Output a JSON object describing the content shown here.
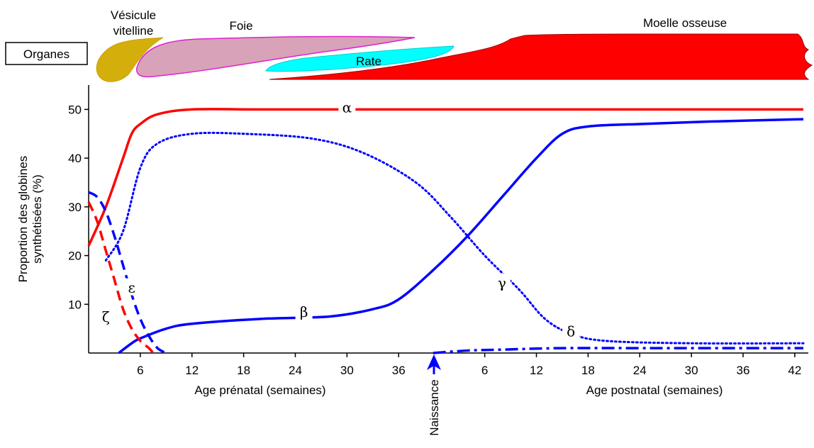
{
  "chart_data": {
    "type": "line",
    "organs_box_label": "Organes",
    "organs": [
      {
        "name": "Vésicule vitelline",
        "line1": "Vésicule",
        "line2": "vitelline",
        "color": "#d4af0c"
      },
      {
        "name": "Foie",
        "color": "#d8a2b8",
        "stroke": "#e020d0"
      },
      {
        "name": "Rate",
        "color": "#00ffff"
      },
      {
        "name": "Moelle osseuse",
        "color": "#ff0000"
      }
    ],
    "ylabel_line1": "Proportion des globines",
    "ylabel_line2": "synthétisées (%)",
    "yticks": [
      10,
      20,
      30,
      40,
      50
    ],
    "ytick_labels": [
      "10",
      "20",
      "30",
      "40",
      "50"
    ],
    "ylim": [
      0,
      55
    ],
    "prenatal_xlabel": "Age prénatal (semaines)",
    "postnatal_xlabel": "Age postnatal (semaines)",
    "prenatal_ticks": [
      "6",
      "12",
      "18",
      "24",
      "30",
      "36"
    ],
    "postnatal_ticks": [
      "6",
      "12",
      "18",
      "24",
      "30",
      "36",
      "42"
    ],
    "birth_label": "Naissance",
    "birth_week": 40,
    "series": [
      {
        "name": "α",
        "color": "#ff0000",
        "style": "solid",
        "points": [
          [
            0,
            22
          ],
          [
            2,
            30
          ],
          [
            4,
            40
          ],
          [
            5,
            45
          ],
          [
            6,
            47
          ],
          [
            8,
            49
          ],
          [
            12,
            50
          ],
          [
            20,
            50
          ],
          [
            30,
            50
          ],
          [
            40,
            50
          ],
          [
            50,
            50
          ],
          [
            60,
            50
          ],
          [
            70,
            50
          ],
          [
            80,
            50
          ],
          [
            83,
            50
          ]
        ]
      },
      {
        "name": "β",
        "color": "#0000ff",
        "style": "solid",
        "points": [
          [
            3.5,
            0
          ],
          [
            5,
            2
          ],
          [
            6,
            3
          ],
          [
            9,
            5
          ],
          [
            12,
            6
          ],
          [
            20,
            7
          ],
          [
            28,
            7.5
          ],
          [
            33,
            9
          ],
          [
            36,
            11
          ],
          [
            40,
            17
          ],
          [
            44,
            24
          ],
          [
            48,
            32
          ],
          [
            52,
            40
          ],
          [
            55,
            45
          ],
          [
            58,
            46.5
          ],
          [
            64,
            47
          ],
          [
            72,
            47.5
          ],
          [
            83,
            48
          ]
        ]
      },
      {
        "name": "γ",
        "color": "#0000ff",
        "style": "dotted",
        "points": [
          [
            2,
            19
          ],
          [
            4,
            25
          ],
          [
            6,
            38
          ],
          [
            8,
            43
          ],
          [
            12,
            45
          ],
          [
            18,
            45
          ],
          [
            26,
            44
          ],
          [
            32,
            41
          ],
          [
            38,
            35
          ],
          [
            42,
            28
          ],
          [
            46,
            20
          ],
          [
            50,
            13
          ],
          [
            53,
            7
          ],
          [
            56,
            4
          ],
          [
            60,
            2.5
          ],
          [
            70,
            2
          ],
          [
            83,
            2
          ]
        ]
      },
      {
        "name": "δ",
        "color": "#0000ff",
        "style": "dashdot",
        "points": [
          [
            40,
            0
          ],
          [
            44,
            0.5
          ],
          [
            48,
            0.7
          ],
          [
            55,
            1
          ],
          [
            65,
            1
          ],
          [
            75,
            1
          ],
          [
            83,
            1
          ]
        ]
      },
      {
        "name": "ε",
        "color": "#0000ff",
        "style": "dashed",
        "points": [
          [
            0,
            33
          ],
          [
            1,
            32
          ],
          [
            2,
            29
          ],
          [
            3,
            24
          ],
          [
            4,
            18
          ],
          [
            5,
            12
          ],
          [
            6,
            7
          ],
          [
            7,
            3.5
          ],
          [
            8,
            1
          ],
          [
            9,
            0
          ]
        ]
      },
      {
        "name": "ζ",
        "color": "#ff0000",
        "style": "dashed",
        "points": [
          [
            0,
            31
          ],
          [
            1,
            27
          ],
          [
            2,
            21
          ],
          [
            3,
            15
          ],
          [
            4,
            9
          ],
          [
            5,
            5
          ],
          [
            6,
            2.5
          ],
          [
            7,
            1
          ],
          [
            7.5,
            0
          ]
        ]
      }
    ],
    "series_labels": [
      {
        "name": "α",
        "x": 30,
        "y": 50
      },
      {
        "name": "β",
        "x": 25,
        "y": 8
      },
      {
        "name": "γ",
        "x": 48,
        "y": 14
      },
      {
        "name": "δ",
        "x": 56,
        "y": 4
      },
      {
        "name": "ε",
        "x": 5,
        "y": 13
      },
      {
        "name": "ζ",
        "x": 2,
        "y": 7
      }
    ],
    "xlim": [
      0,
      83
    ]
  }
}
